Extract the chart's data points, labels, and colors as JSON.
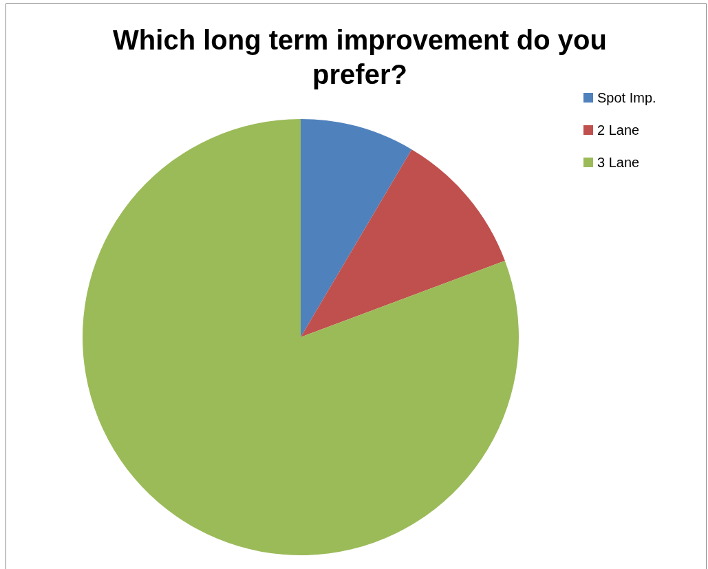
{
  "chart_data": {
    "type": "pie",
    "title": "Which long term improvement do you prefer?",
    "categories": [
      "Spot Imp.",
      "2 Lane",
      "3 Lane"
    ],
    "values": [
      8.5,
      10.8,
      80.7
    ],
    "colors": [
      "#4f81bd",
      "#c0504d",
      "#9bbb59"
    ],
    "legend": "right"
  }
}
